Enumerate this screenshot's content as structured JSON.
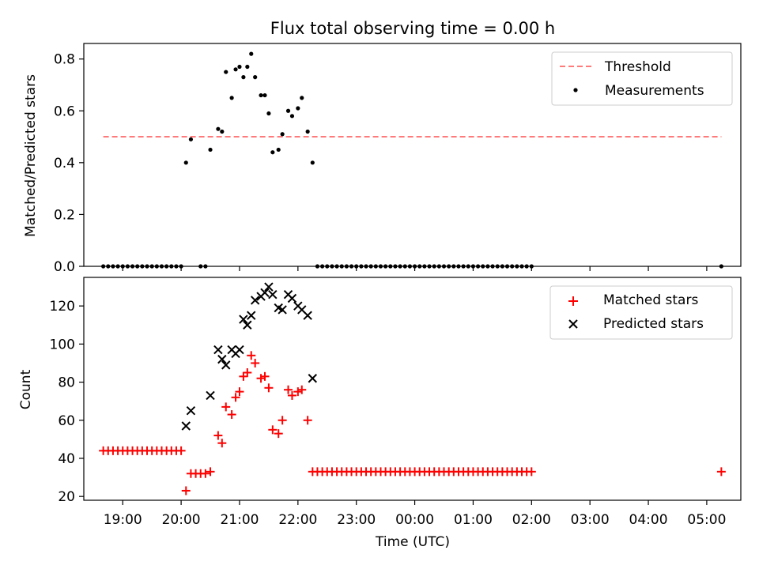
{
  "chart_data": [
    {
      "type": "scatter",
      "title": "Flux total observing time = 0.00 h",
      "ylabel": "Matched/Predicted stars",
      "ylim": [
        0,
        0.86
      ],
      "yticks": [
        0.0,
        0.2,
        0.4,
        0.6,
        0.8
      ],
      "ytick_labels": [
        "0.0",
        "0.2",
        "0.4",
        "0.6",
        "0.8"
      ],
      "legend": {
        "placement": "top-right",
        "entries": [
          "Threshold",
          "Measurements"
        ]
      },
      "threshold": {
        "name": "Threshold",
        "value": 0.5,
        "x_start": "18:40",
        "x_end": "05:15",
        "color": "#ff7a7a",
        "style": "dashed"
      },
      "series": [
        {
          "name": "Measurements",
          "marker": "dot",
          "color": "#000000",
          "points": [
            [
              "18:40",
              0
            ],
            [
              "18:45",
              0
            ],
            [
              "18:50",
              0
            ],
            [
              "18:55",
              0
            ],
            [
              "19:00",
              0
            ],
            [
              "19:05",
              0
            ],
            [
              "19:10",
              0
            ],
            [
              "19:15",
              0
            ],
            [
              "19:20",
              0
            ],
            [
              "19:25",
              0
            ],
            [
              "19:30",
              0
            ],
            [
              "19:35",
              0
            ],
            [
              "19:40",
              0
            ],
            [
              "19:45",
              0
            ],
            [
              "19:50",
              0
            ],
            [
              "19:55",
              0
            ],
            [
              "20:00",
              0
            ],
            [
              "20:05",
              0.4
            ],
            [
              "20:10",
              0.49
            ],
            [
              "20:20",
              0
            ],
            [
              "20:25",
              0
            ],
            [
              "20:30",
              0.45
            ],
            [
              "20:38",
              0.53
            ],
            [
              "20:42",
              0.52
            ],
            [
              "20:46",
              0.75
            ],
            [
              "20:52",
              0.65
            ],
            [
              "20:56",
              0.76
            ],
            [
              "21:00",
              0.77
            ],
            [
              "21:04",
              0.73
            ],
            [
              "21:08",
              0.77
            ],
            [
              "21:12",
              0.82
            ],
            [
              "21:16",
              0.73
            ],
            [
              "21:22",
              0.66
            ],
            [
              "21:26",
              0.66
            ],
            [
              "21:30",
              0.59
            ],
            [
              "21:34",
              0.44
            ],
            [
              "21:40",
              0.45
            ],
            [
              "21:44",
              0.51
            ],
            [
              "21:50",
              0.6
            ],
            [
              "21:54",
              0.58
            ],
            [
              "22:00",
              0.61
            ],
            [
              "22:04",
              0.65
            ],
            [
              "22:10",
              0.52
            ],
            [
              "22:15",
              0.4
            ],
            [
              "22:20",
              0
            ],
            [
              "22:25",
              0
            ],
            [
              "22:30",
              0
            ],
            [
              "22:35",
              0
            ],
            [
              "22:40",
              0
            ],
            [
              "22:45",
              0
            ],
            [
              "22:50",
              0
            ],
            [
              "22:55",
              0
            ],
            [
              "23:00",
              0
            ],
            [
              "23:05",
              0
            ],
            [
              "23:10",
              0
            ],
            [
              "23:15",
              0
            ],
            [
              "23:20",
              0
            ],
            [
              "23:25",
              0
            ],
            [
              "23:30",
              0
            ],
            [
              "23:35",
              0
            ],
            [
              "23:40",
              0
            ],
            [
              "23:45",
              0
            ],
            [
              "23:50",
              0
            ],
            [
              "23:55",
              0
            ],
            [
              "00:00",
              0
            ],
            [
              "00:05",
              0
            ],
            [
              "00:10",
              0
            ],
            [
              "00:15",
              0
            ],
            [
              "00:20",
              0
            ],
            [
              "00:25",
              0
            ],
            [
              "00:30",
              0
            ],
            [
              "00:35",
              0
            ],
            [
              "00:40",
              0
            ],
            [
              "00:45",
              0
            ],
            [
              "00:50",
              0
            ],
            [
              "00:55",
              0
            ],
            [
              "01:00",
              0
            ],
            [
              "01:05",
              0
            ],
            [
              "01:10",
              0
            ],
            [
              "01:15",
              0
            ],
            [
              "01:20",
              0
            ],
            [
              "01:25",
              0
            ],
            [
              "01:30",
              0
            ],
            [
              "01:35",
              0
            ],
            [
              "01:40",
              0
            ],
            [
              "01:45",
              0
            ],
            [
              "01:50",
              0
            ],
            [
              "01:55",
              0
            ],
            [
              "02:00",
              0
            ],
            [
              "05:15",
              0
            ]
          ]
        }
      ]
    },
    {
      "type": "scatter",
      "xlabel": "Time (UTC)",
      "ylabel": "Count",
      "ylim": [
        18,
        135
      ],
      "yticks": [
        20,
        40,
        60,
        80,
        100,
        120
      ],
      "ytick_labels": [
        "20",
        "40",
        "60",
        "80",
        "100",
        "120"
      ],
      "xticks": [
        "19:00",
        "20:00",
        "21:00",
        "22:00",
        "23:00",
        "00:00",
        "01:00",
        "02:00",
        "03:00",
        "04:00",
        "05:00"
      ],
      "xlim": [
        "18:20",
        "05:35"
      ],
      "legend": {
        "placement": "top-right",
        "entries": [
          "Matched stars",
          "Predicted stars"
        ]
      },
      "series": [
        {
          "name": "Matched stars",
          "marker": "plus",
          "color": "#ff0000",
          "points": [
            [
              "18:40",
              44
            ],
            [
              "18:45",
              44
            ],
            [
              "18:50",
              44
            ],
            [
              "18:55",
              44
            ],
            [
              "19:00",
              44
            ],
            [
              "19:05",
              44
            ],
            [
              "19:10",
              44
            ],
            [
              "19:15",
              44
            ],
            [
              "19:20",
              44
            ],
            [
              "19:25",
              44
            ],
            [
              "19:30",
              44
            ],
            [
              "19:35",
              44
            ],
            [
              "19:40",
              44
            ],
            [
              "19:45",
              44
            ],
            [
              "19:50",
              44
            ],
            [
              "19:55",
              44
            ],
            [
              "20:00",
              44
            ],
            [
              "20:05",
              23
            ],
            [
              "20:10",
              32
            ],
            [
              "20:15",
              32
            ],
            [
              "20:20",
              32
            ],
            [
              "20:25",
              32
            ],
            [
              "20:30",
              33
            ],
            [
              "20:38",
              52
            ],
            [
              "20:42",
              48
            ],
            [
              "20:46",
              67
            ],
            [
              "20:52",
              63
            ],
            [
              "20:56",
              72
            ],
            [
              "21:00",
              75
            ],
            [
              "21:04",
              83
            ],
            [
              "21:08",
              85
            ],
            [
              "21:12",
              94
            ],
            [
              "21:16",
              90
            ],
            [
              "21:22",
              82
            ],
            [
              "21:26",
              83
            ],
            [
              "21:30",
              77
            ],
            [
              "21:34",
              55
            ],
            [
              "21:40",
              53
            ],
            [
              "21:44",
              60
            ],
            [
              "21:50",
              76
            ],
            [
              "21:54",
              73
            ],
            [
              "22:00",
              75
            ],
            [
              "22:04",
              76
            ],
            [
              "22:10",
              60
            ],
            [
              "22:15",
              33
            ],
            [
              "22:20",
              33
            ],
            [
              "22:25",
              33
            ],
            [
              "22:30",
              33
            ],
            [
              "22:35",
              33
            ],
            [
              "22:40",
              33
            ],
            [
              "22:45",
              33
            ],
            [
              "22:50",
              33
            ],
            [
              "22:55",
              33
            ],
            [
              "23:00",
              33
            ],
            [
              "23:05",
              33
            ],
            [
              "23:10",
              33
            ],
            [
              "23:15",
              33
            ],
            [
              "23:20",
              33
            ],
            [
              "23:25",
              33
            ],
            [
              "23:30",
              33
            ],
            [
              "23:35",
              33
            ],
            [
              "23:40",
              33
            ],
            [
              "23:45",
              33
            ],
            [
              "23:50",
              33
            ],
            [
              "23:55",
              33
            ],
            [
              "00:00",
              33
            ],
            [
              "00:05",
              33
            ],
            [
              "00:10",
              33
            ],
            [
              "00:15",
              33
            ],
            [
              "00:20",
              33
            ],
            [
              "00:25",
              33
            ],
            [
              "00:30",
              33
            ],
            [
              "00:35",
              33
            ],
            [
              "00:40",
              33
            ],
            [
              "00:45",
              33
            ],
            [
              "00:50",
              33
            ],
            [
              "00:55",
              33
            ],
            [
              "01:00",
              33
            ],
            [
              "01:05",
              33
            ],
            [
              "01:10",
              33
            ],
            [
              "01:15",
              33
            ],
            [
              "01:20",
              33
            ],
            [
              "01:25",
              33
            ],
            [
              "01:30",
              33
            ],
            [
              "01:35",
              33
            ],
            [
              "01:40",
              33
            ],
            [
              "01:45",
              33
            ],
            [
              "01:50",
              33
            ],
            [
              "01:55",
              33
            ],
            [
              "02:00",
              33
            ],
            [
              "05:15",
              33
            ]
          ]
        },
        {
          "name": "Predicted stars",
          "marker": "x",
          "color": "#000000",
          "points": [
            [
              "20:05",
              57
            ],
            [
              "20:10",
              65
            ],
            [
              "20:30",
              73
            ],
            [
              "20:38",
              97
            ],
            [
              "20:42",
              92
            ],
            [
              "20:46",
              89
            ],
            [
              "20:52",
              97
            ],
            [
              "20:56",
              95
            ],
            [
              "21:00",
              97
            ],
            [
              "21:04",
              113
            ],
            [
              "21:08",
              110
            ],
            [
              "21:12",
              115
            ],
            [
              "21:16",
              123
            ],
            [
              "21:22",
              125
            ],
            [
              "21:26",
              127
            ],
            [
              "21:30",
              130
            ],
            [
              "21:34",
              126
            ],
            [
              "21:40",
              119
            ],
            [
              "21:44",
              118
            ],
            [
              "21:50",
              126
            ],
            [
              "21:54",
              124
            ],
            [
              "22:00",
              120
            ],
            [
              "22:04",
              118
            ],
            [
              "22:10",
              115
            ],
            [
              "22:15",
              82
            ]
          ]
        }
      ]
    }
  ]
}
